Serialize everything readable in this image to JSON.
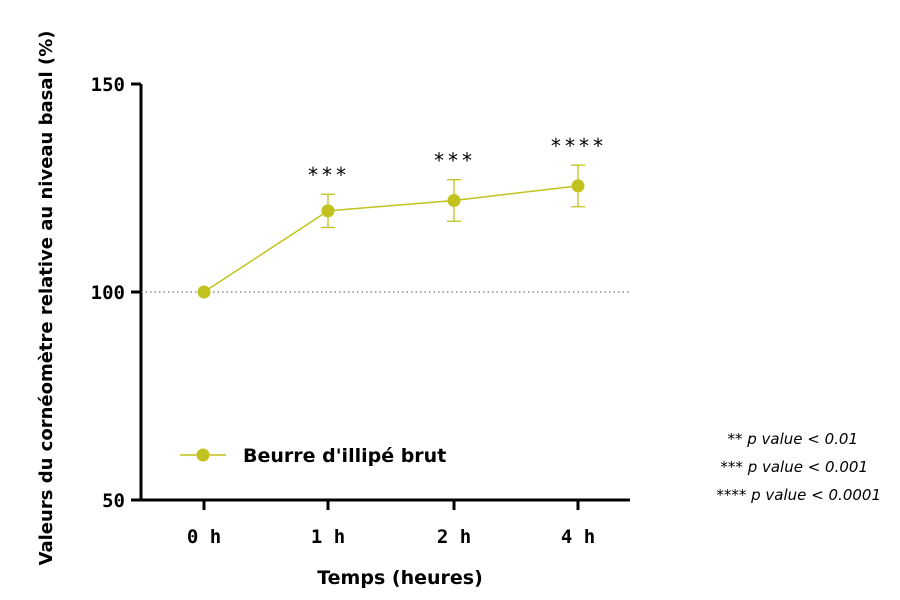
{
  "chart_data": {
    "type": "line",
    "ylabel": "Valeurs du cornéomètre relative au niveau basal (%)",
    "xlabel": "Temps (heures)",
    "ylim": [
      50,
      150
    ],
    "yticks": [
      "50",
      "100",
      "150"
    ],
    "reference_line": 100,
    "categories": [
      "0 h",
      "1 h",
      "2 h",
      "4 h"
    ],
    "series": [
      {
        "name": "Beurre d'illipé brut",
        "color": "#c2c21f",
        "values": [
          100,
          119.5,
          122,
          125.5
        ],
        "error": [
          0,
          4,
          5,
          5
        ],
        "significance": [
          "",
          "***",
          "***",
          "****"
        ]
      }
    ],
    "notes": [
      "** p value < 0.01",
      "*** p value < 0.001",
      "**** p value < 0.0001"
    ],
    "legend_position": "bottom-left"
  }
}
